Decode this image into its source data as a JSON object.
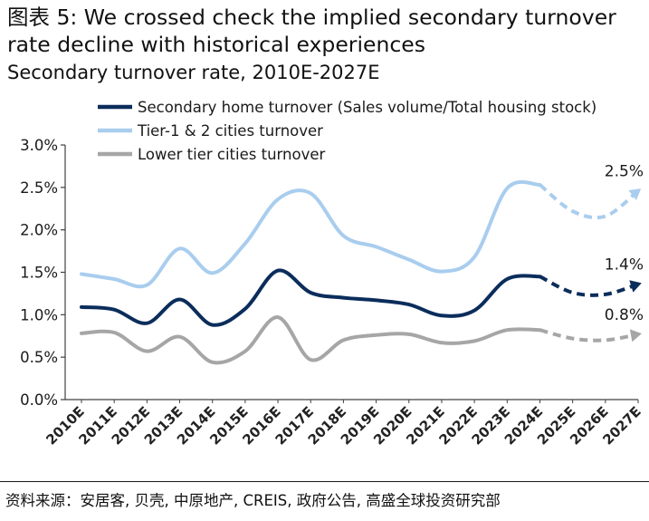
{
  "title": "图表 5: We crossed check the implied secondary turnover rate decline with historical experiences",
  "subtitle": "Secondary turnover rate, 2010E-2027E",
  "source": "资料来源：安居客, 贝壳, 中原地产, CREIS, 政府公告, 高盛全球投资研究部",
  "chart_data": {
    "type": "line",
    "categories": [
      "2010E",
      "2011E",
      "2012E",
      "2013E",
      "2014E",
      "2015E",
      "2016E",
      "2017E",
      "2018E",
      "2019E",
      "2020E",
      "2021E",
      "2022E",
      "2023E",
      "2024E",
      "2025E",
      "2026E",
      "2027E"
    ],
    "yticks": [
      "0.0%",
      "0.5%",
      "1.0%",
      "1.5%",
      "2.0%",
      "2.5%",
      "3.0%"
    ],
    "ylim": [
      0,
      3.0
    ],
    "grid": false,
    "legend_position": "top",
    "projection_start_index": 14,
    "series": [
      {
        "name": "Secondary home turnover (Sales volume/Total housing stock)",
        "color": "#0b2d5b",
        "values": [
          1.09,
          1.06,
          0.9,
          1.18,
          0.88,
          1.07,
          1.52,
          1.26,
          1.2,
          1.17,
          1.12,
          0.99,
          1.05,
          1.42,
          1.45,
          1.26,
          1.24,
          1.36
        ],
        "end_label": "1.4%"
      },
      {
        "name": "Tier-1 & 2 cities turnover",
        "color": "#a9cdee",
        "values": [
          1.48,
          1.42,
          1.35,
          1.78,
          1.49,
          1.84,
          2.36,
          2.43,
          1.93,
          1.8,
          1.65,
          1.51,
          1.68,
          2.49,
          2.53,
          2.22,
          2.16,
          2.46
        ],
        "end_label": "2.5%"
      },
      {
        "name": "Lower tier cities turnover",
        "color": "#a6a6a6",
        "values": [
          0.78,
          0.79,
          0.57,
          0.74,
          0.44,
          0.57,
          0.97,
          0.47,
          0.7,
          0.76,
          0.77,
          0.67,
          0.69,
          0.82,
          0.82,
          0.72,
          0.7,
          0.77
        ],
        "end_label": "0.8%"
      }
    ]
  }
}
